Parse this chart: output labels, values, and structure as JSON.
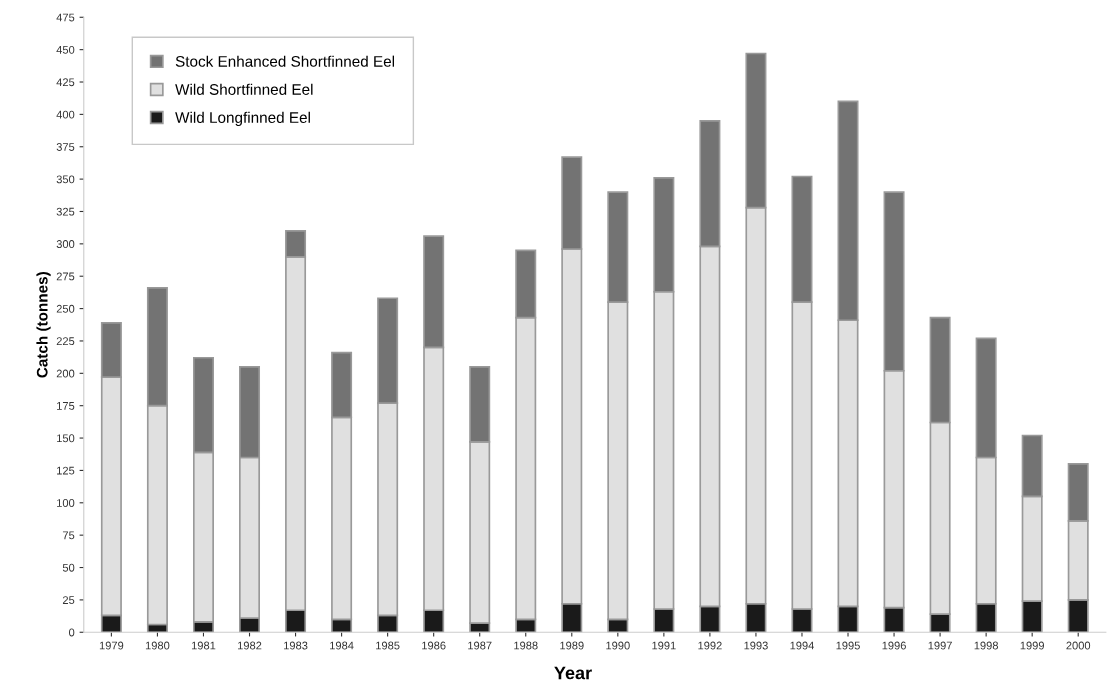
{
  "chart_data": {
    "type": "bar",
    "stacked": true,
    "xlabel": "Year",
    "ylabel": "Catch (tonnes)",
    "categories": [
      "1979",
      "1980",
      "1981",
      "1982",
      "1983",
      "1984",
      "1985",
      "1986",
      "1987",
      "1988",
      "1989",
      "1990",
      "1991",
      "1992",
      "1993",
      "1994",
      "1995",
      "1996",
      "1997",
      "1998",
      "1999",
      "2000"
    ],
    "series": [
      {
        "name": "Wild Longfinned Eel",
        "color": "#1a1a1a",
        "values": [
          13,
          6,
          8,
          11,
          17,
          10,
          13,
          17,
          7,
          10,
          22,
          10,
          18,
          20,
          22,
          18,
          20,
          19,
          14,
          22,
          24,
          25
        ]
      },
      {
        "name": "Wild Shortfinned Eel",
        "color": "#e0e0e0",
        "values": [
          184,
          169,
          131,
          124,
          273,
          156,
          164,
          203,
          140,
          233,
          274,
          245,
          245,
          278,
          306,
          237,
          221,
          183,
          148,
          113,
          81,
          61
        ]
      },
      {
        "name": "Stock Enhanced Shortfinned Eel",
        "color": "#737373",
        "values": [
          42,
          91,
          73,
          70,
          20,
          50,
          81,
          86,
          58,
          52,
          71,
          85,
          88,
          97,
          119,
          97,
          169,
          138,
          81,
          92,
          47,
          44
        ]
      }
    ],
    "ylim": [
      0,
      475
    ],
    "yticks": [
      0,
      25,
      50,
      75,
      100,
      125,
      150,
      175,
      200,
      225,
      250,
      275,
      300,
      325,
      350,
      375,
      400,
      425,
      450,
      475
    ],
    "grid": false,
    "legend": "top left"
  }
}
